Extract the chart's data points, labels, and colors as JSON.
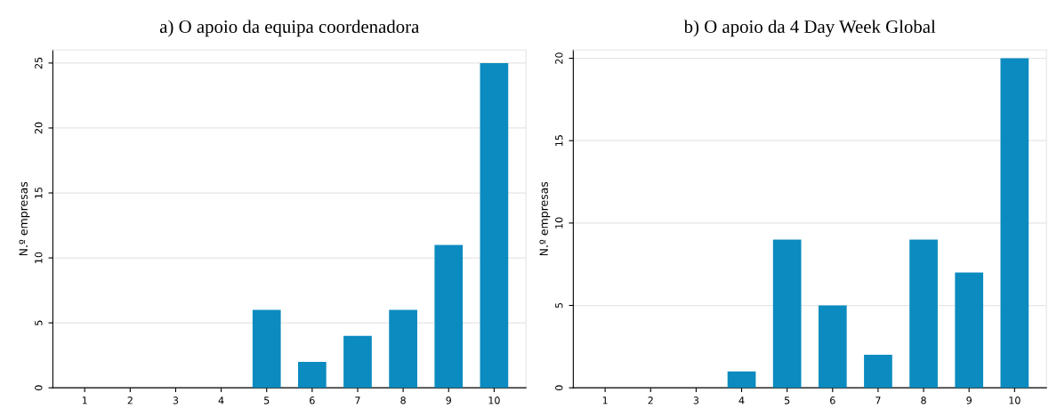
{
  "chart_data": [
    {
      "type": "bar",
      "title": "a) O apoio da equipa coordenadora",
      "ylabel": "N.º empresas",
      "categories": [
        "1",
        "2",
        "3",
        "4",
        "5",
        "6",
        "7",
        "8",
        "9",
        "10"
      ],
      "values": [
        0,
        0,
        0,
        0,
        6,
        2,
        4,
        6,
        11,
        25
      ],
      "color": "#0b8bbf",
      "ylim": [
        0,
        26
      ],
      "yticks": [
        0,
        5,
        10,
        15,
        20,
        25
      ],
      "grid": "y",
      "legend": false
    },
    {
      "type": "bar",
      "title": "b) O apoio da 4 Day Week Global",
      "ylabel": "N.º empresas",
      "categories": [
        "1",
        "2",
        "3",
        "4",
        "5",
        "6",
        "7",
        "8",
        "9",
        "10"
      ],
      "values": [
        0,
        0,
        0,
        1,
        9,
        5,
        2,
        9,
        7,
        20
      ],
      "color": "#0b8bbf",
      "ylim": [
        0,
        20.5
      ],
      "yticks": [
        0,
        5,
        10,
        15,
        20
      ],
      "grid": "y",
      "legend": false
    }
  ]
}
